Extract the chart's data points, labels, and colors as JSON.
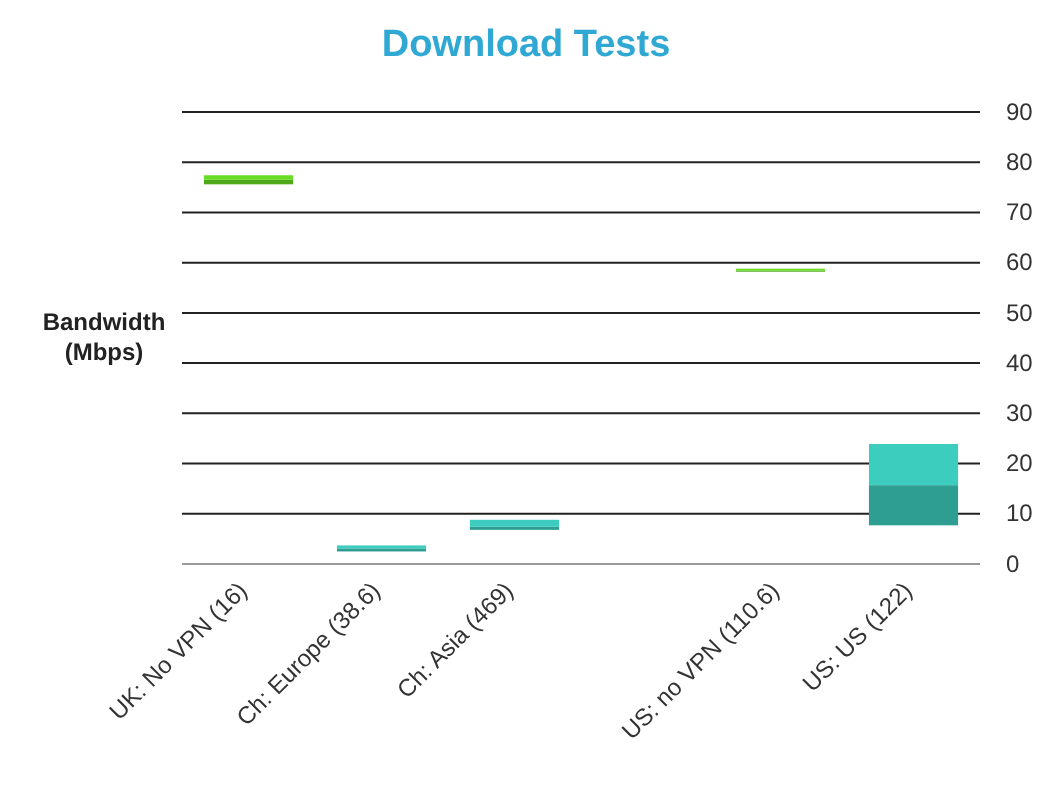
{
  "chart_data": {
    "type": "box",
    "title": "Download Tests",
    "ylabel": "Bandwidth\n(Mbps)",
    "categories": [
      "UK: No VPN (16)",
      "Ch: Europe (38.6)",
      "Ch: Asia (469)",
      null,
      "US: no VPN (110.6)",
      "US:  US (122)"
    ],
    "series": [
      {
        "color": "#4ea81a",
        "boxes": [
          {
            "low": 75.6,
            "q1": 75.6,
            "median": 76.5,
            "q3": 77.4,
            "high": 77.4
          },
          null,
          null,
          null,
          {
            "low": 58.2,
            "q1": 58.2,
            "median": 58.4,
            "q3": 58.8,
            "high": 58.8
          },
          null
        ]
      },
      {
        "color": "#2e9d92",
        "boxes": [
          null,
          {
            "low": 2.5,
            "q1": 2.5,
            "median": 3.1,
            "q3": 3.7,
            "high": 3.7
          },
          {
            "low": 6.8,
            "q1": 6.8,
            "median": 7.4,
            "q3": 8.8,
            "high": 8.8
          },
          null,
          null,
          {
            "low": 7.7,
            "q1": 7.7,
            "median": 15.7,
            "q3": 23.9,
            "high": 23.9
          }
        ]
      }
    ],
    "ylim": [
      0,
      90
    ],
    "yticks": [
      0,
      10,
      20,
      30,
      40,
      50,
      60,
      70,
      80,
      90
    ],
    "grid": "y"
  }
}
